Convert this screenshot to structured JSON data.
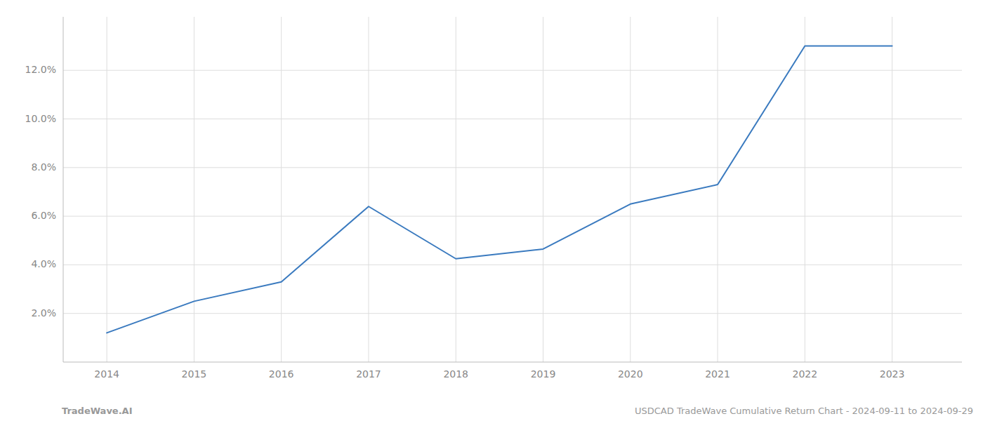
{
  "chart_data": {
    "type": "line",
    "x": [
      2014,
      2015,
      2016,
      2017,
      2018,
      2019,
      2020,
      2021,
      2022,
      2023
    ],
    "values": [
      1.2,
      2.5,
      3.3,
      6.4,
      4.25,
      4.65,
      6.5,
      7.3,
      13.0,
      13.0
    ],
    "color": "#3a7abf",
    "xlim": [
      2013.5,
      2023.8
    ],
    "xticks": [
      2014,
      2015,
      2016,
      2017,
      2018,
      2019,
      2020,
      2021,
      2022,
      2023
    ],
    "ylim": [
      0.0,
      14.2
    ],
    "yticks": [
      {
        "value": 2.0,
        "label": "2.0%"
      },
      {
        "value": 4.0,
        "label": "4.0%"
      },
      {
        "value": 6.0,
        "label": "6.0%"
      },
      {
        "value": 8.0,
        "label": "8.0%"
      },
      {
        "value": 10.0,
        "label": "10.0%"
      },
      {
        "value": 12.0,
        "label": "12.0%"
      }
    ],
    "grid": true,
    "annotations": [
      "TradeWave.AI",
      "USDCAD TradeWave Cumulative Return Chart - 2024-09-11 to 2024-09-29"
    ]
  }
}
